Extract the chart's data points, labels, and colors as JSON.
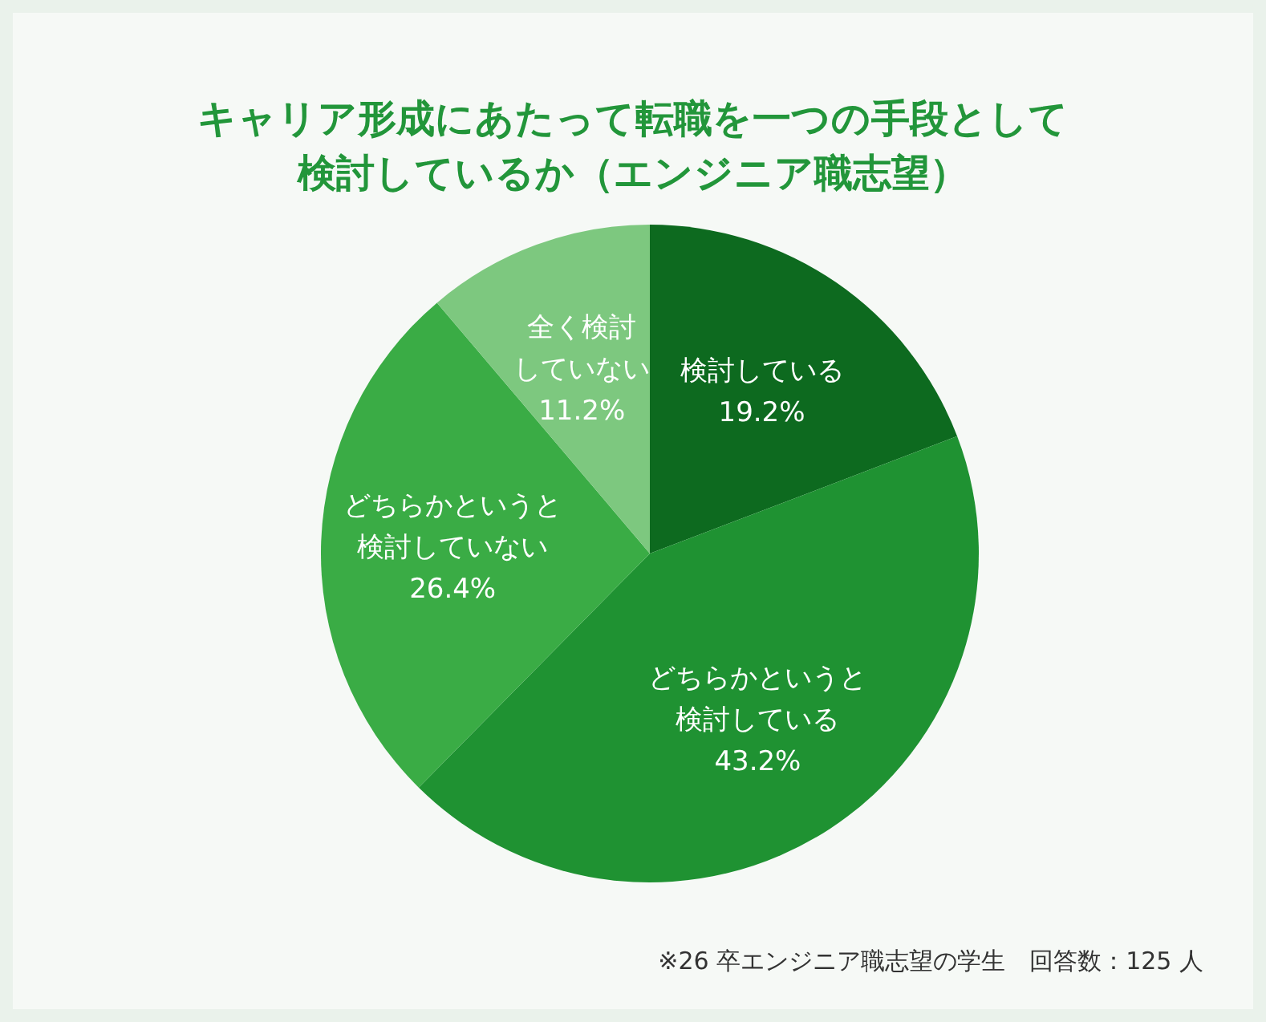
{
  "chart_data": {
    "type": "pie",
    "title": "キャリア形成にあたって転職を一つの手段として検討しているか（エンジニア職志望）",
    "categories": [
      "検討している",
      "どちらかというと検討している",
      "どちらかというと検討していない",
      "全く検討していない"
    ],
    "values": [
      19.2,
      43.2,
      26.4,
      11.2
    ],
    "value_labels": [
      "19.2%",
      "43.2%",
      "26.4%",
      "11.2%"
    ],
    "colors": [
      "#0d6a1f",
      "#1f9232",
      "#3aac45",
      "#7dc87f"
    ],
    "annotations": [
      "※26 卒エンジニア職志望の学生　回答数：125 人"
    ]
  }
}
